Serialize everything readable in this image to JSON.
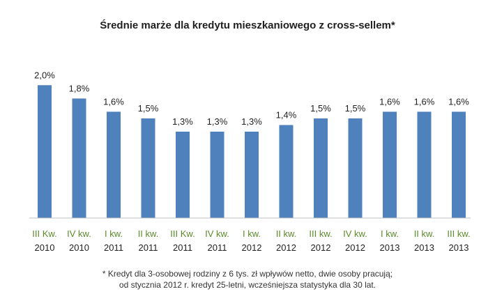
{
  "chart_data": {
    "type": "bar",
    "title": "Średnie marże dla kredytu mieszkaniowego z cross-sellem*",
    "categories": [
      [
        "III Kw.",
        "2010"
      ],
      [
        "IV kw.",
        "2010"
      ],
      [
        "I kw.",
        "2011"
      ],
      [
        "II kw.",
        "2011"
      ],
      [
        "III Kw.",
        "2011"
      ],
      [
        "IV kw.",
        "2011"
      ],
      [
        "I kw.",
        "2012"
      ],
      [
        "II kw.",
        "2012"
      ],
      [
        "III kw.",
        "2012"
      ],
      [
        "IV kw.",
        "2012"
      ],
      [
        "I kw.",
        "2013"
      ],
      [
        "II kw.",
        "2013"
      ],
      [
        "III kw.",
        "2013"
      ]
    ],
    "values": [
      2.0,
      1.8,
      1.6,
      1.5,
      1.3,
      1.3,
      1.3,
      1.4,
      1.5,
      1.5,
      1.6,
      1.6,
      1.6
    ],
    "value_labels": [
      "2,0%",
      "1,8%",
      "1,6%",
      "1,5%",
      "1,3%",
      "1,3%",
      "1,3%",
      "1,4%",
      "1,5%",
      "1,5%",
      "1,6%",
      "1,6%",
      "1,6%"
    ],
    "xlabel": "",
    "ylabel": "",
    "ylim": [
      0,
      2.15
    ],
    "grid": false,
    "legend": "none",
    "bar_color": "#4f81bd",
    "category_year_color": "#1f1f1f",
    "category_quarter_color": "#5a8a2a"
  },
  "footnote": {
    "line1": "* Kredyt dla 3-osobowej rodziny z 6 tys. zł wpływów netto, dwie osoby pracują;",
    "line2": "od stycznia 2012 r. kredyt 25-letni, wcześniejsza statystyka dla 30 lat."
  }
}
